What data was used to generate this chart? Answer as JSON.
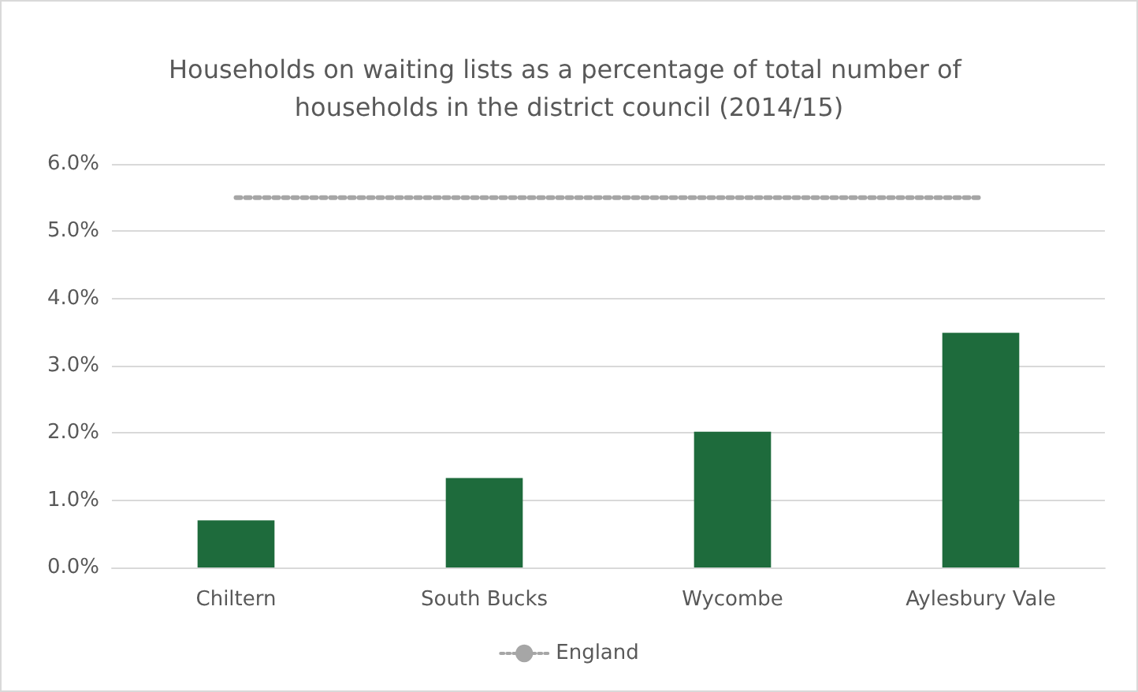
{
  "chart_data": {
    "type": "bar",
    "title": "Households on waiting lists as a percentage of total number of households in the district council (2014/15)",
    "categories": [
      "Chiltern",
      "South Bucks",
      "Wycombe",
      "Aylesbury Vale"
    ],
    "series": [
      {
        "color": "#1e6b3c",
        "values": [
          0.7,
          1.33,
          2.02,
          3.49
        ]
      },
      {
        "type": "line",
        "name": "England",
        "color": "#a6a6a6",
        "values": [
          5.5,
          5.5,
          5.5,
          5.5
        ],
        "line_style": "dotted",
        "marker": "none"
      }
    ],
    "ylim": [
      0,
      6
    ],
    "yticks": [
      {
        "value": 0,
        "label": "0.0%"
      },
      {
        "value": 1,
        "label": "1.0%"
      },
      {
        "value": 2,
        "label": "2.0%"
      },
      {
        "value": 3,
        "label": "3.0%"
      },
      {
        "value": 4,
        "label": "4.0%"
      },
      {
        "value": 5,
        "label": "5.0%"
      },
      {
        "value": 6,
        "label": "6.0%"
      }
    ],
    "grid": "y",
    "legend": "bottom"
  }
}
